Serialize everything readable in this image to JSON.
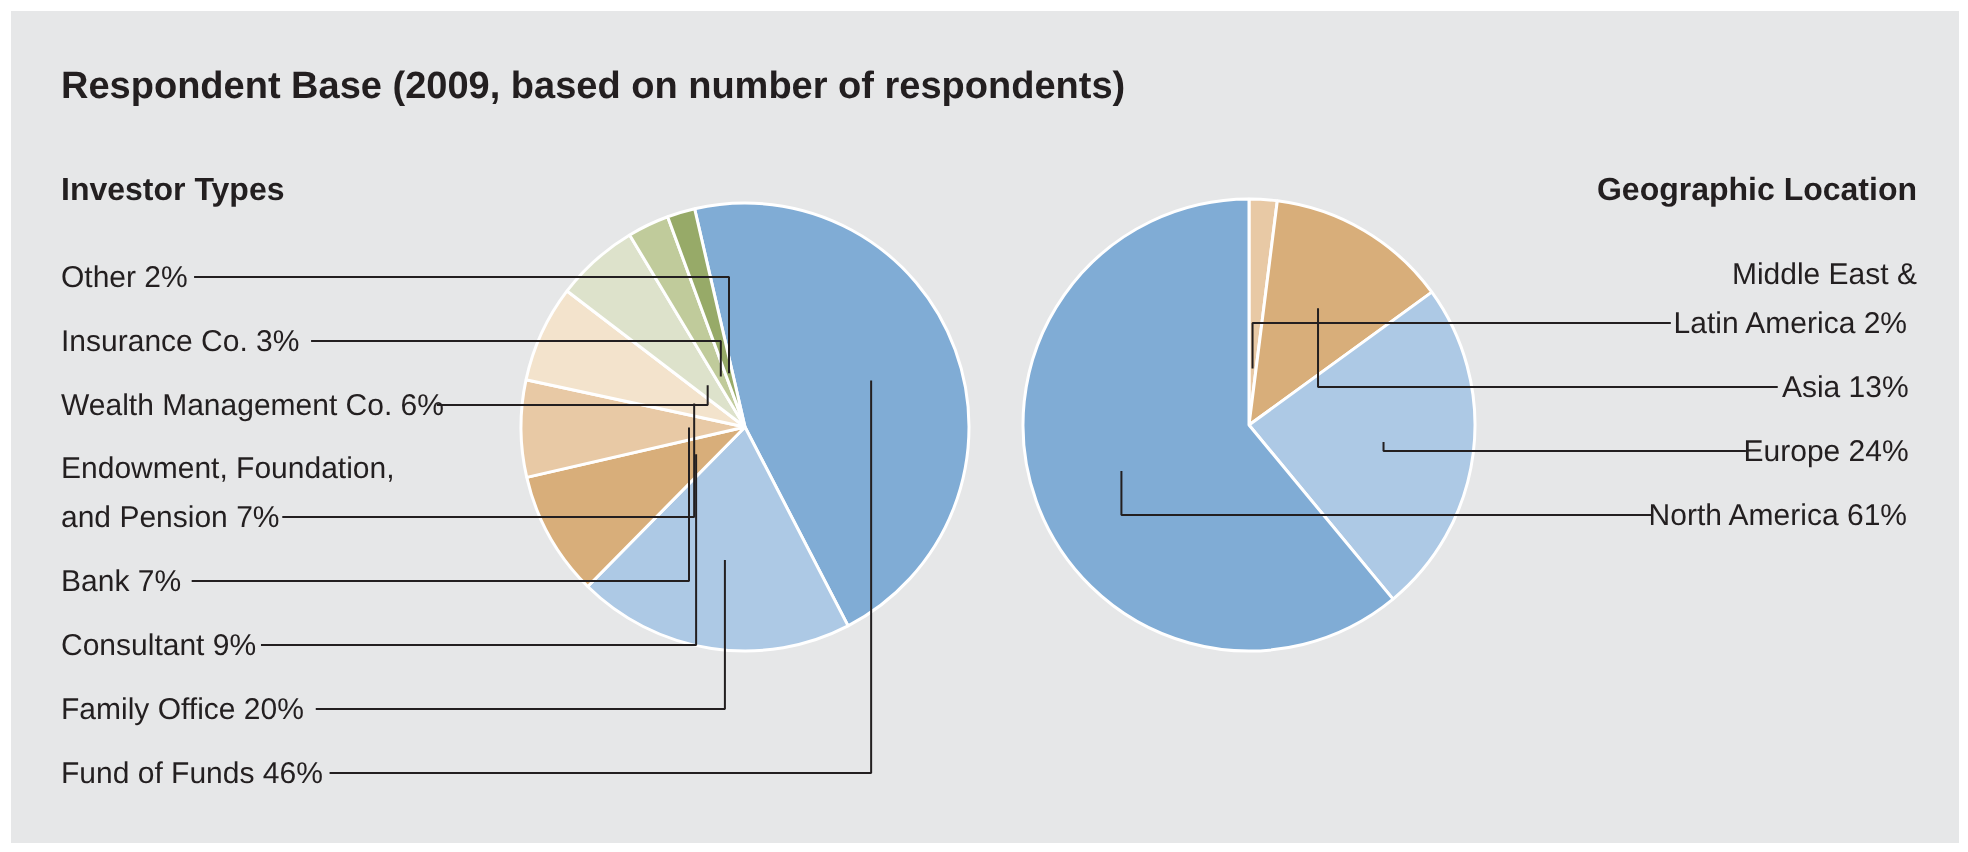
{
  "chart_data": [
    {
      "type": "pie",
      "title": "Respondent Base (2009, based on number of respondents)",
      "subtitle": "Investor Types",
      "categories": [
        "Fund of Funds",
        "Family Office",
        "Consultant",
        "Bank",
        "Endowment, Foundation,\nand Pension",
        "Wealth Management Co.",
        "Insurance Co.",
        "Other"
      ],
      "values": [
        46,
        20,
        9,
        7,
        7,
        6,
        3,
        2
      ],
      "value_labels": [
        "46%",
        "20%",
        "9%",
        "7%",
        "7%",
        "6%",
        "3%",
        "2%"
      ],
      "colors": [
        "#80acd5",
        "#adc9e5",
        "#d8ae7a",
        "#e8c9a5",
        "#f3e3cc",
        "#dde2cb",
        "#c0cb9b",
        "#97aa68"
      ]
    },
    {
      "type": "pie",
      "subtitle": "Geographic Location",
      "categories": [
        "Middle East &\nLatin America",
        "Asia",
        "Europe",
        "North America"
      ],
      "values": [
        2,
        13,
        24,
        61
      ],
      "value_labels": [
        "2%",
        "13%",
        "24%",
        "61%"
      ],
      "colors": [
        "#e8c9a5",
        "#d8ae7a",
        "#adc9e5",
        "#80acd5"
      ]
    }
  ]
}
